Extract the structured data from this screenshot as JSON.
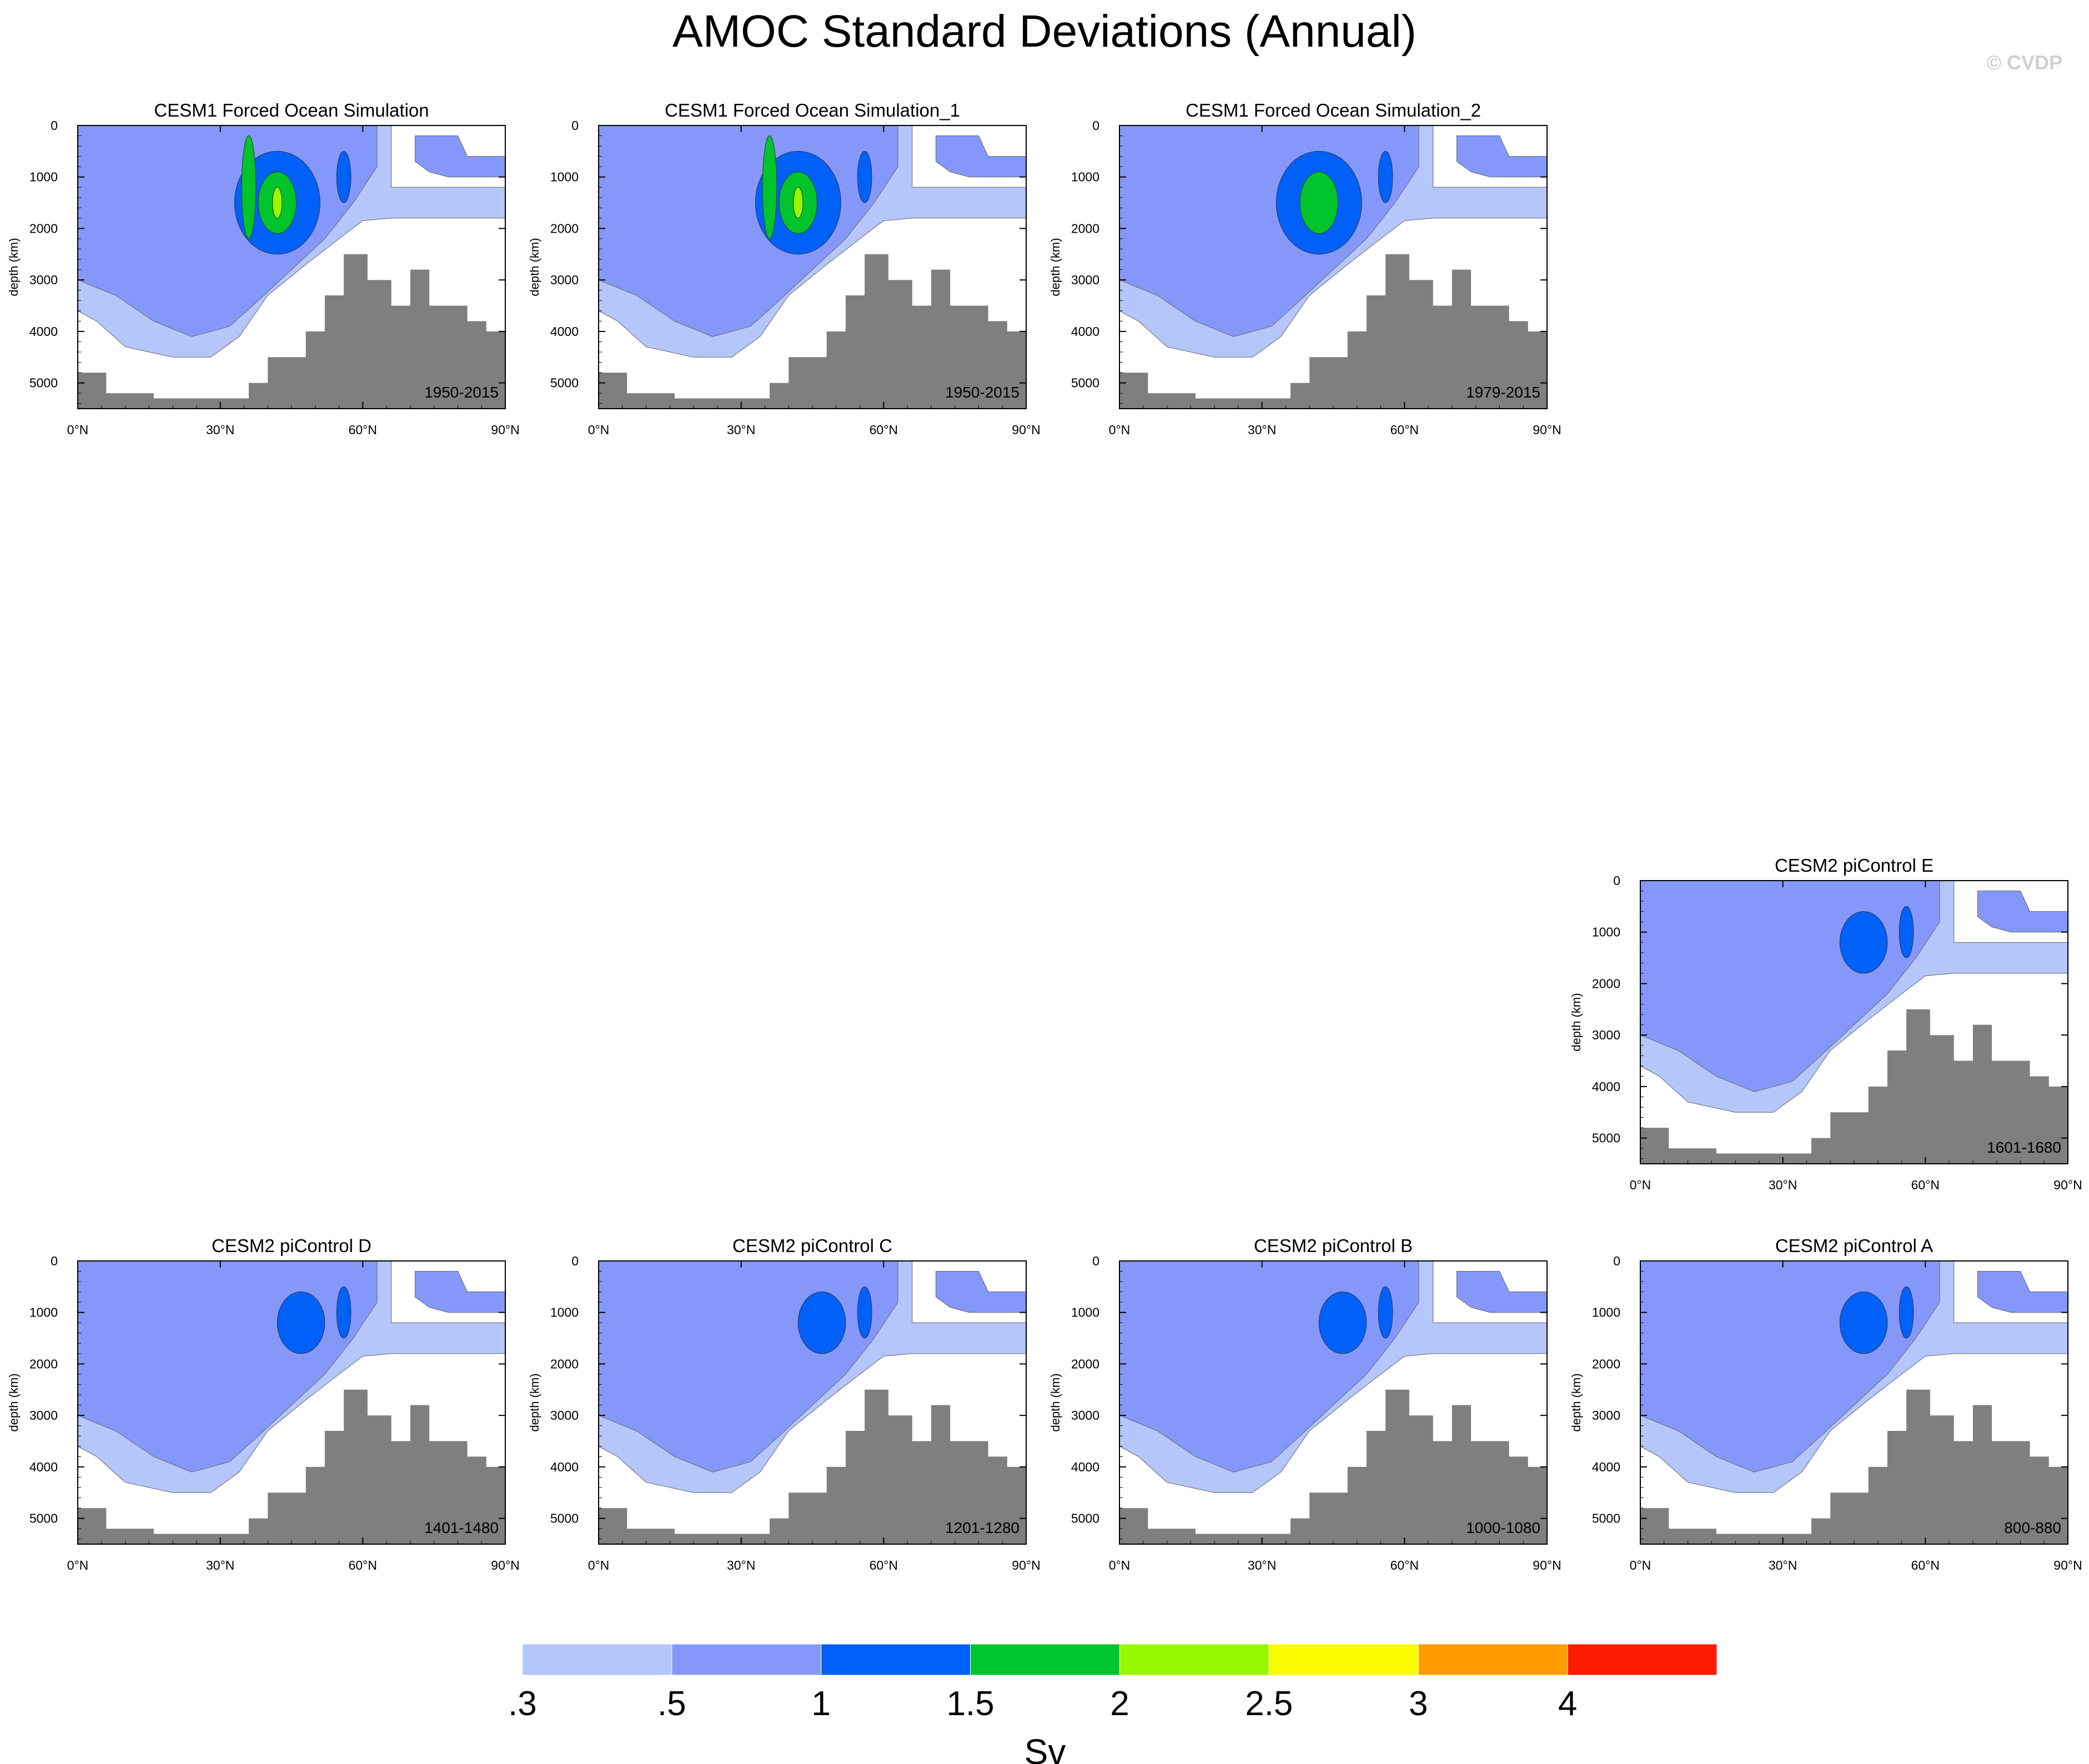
{
  "title": "AMOC Standard Deviations (Annual)",
  "copyright": "© CVDP",
  "chart_data": {
    "type": "contour",
    "units": "Sv",
    "x_ticks": [
      "0°N",
      "30°N",
      "60°N",
      "90°N"
    ],
    "xlim": [
      0,
      90
    ],
    "y_ticks": [
      "0",
      "1000",
      "2000",
      "3000",
      "4000",
      "5000"
    ],
    "ylim": [
      0,
      5500
    ],
    "ylabel": "depth (km)",
    "levels": [
      ".3",
      ".5",
      "1",
      "1.5",
      "2",
      "2.5",
      "3",
      "4"
    ],
    "level_colors": [
      "#ffffff",
      "#b4c6fa",
      "#8598fa",
      "#0060fa",
      "#00c42c",
      "#98f800",
      "#fcfc00",
      "#ff9b00",
      "#ff1a00"
    ],
    "land_color": "#7f7f7f",
    "panels": [
      {
        "title": "CESM1 Forced Ocean Simulation",
        "period": "1950-2015",
        "peak_level": 5
      },
      {
        "title": "CESM1 Forced Ocean Simulation_1",
        "period": "1950-2015",
        "peak_level": 5
      },
      {
        "title": "CESM1 Forced Ocean Simulation_2",
        "period": "1979-2015",
        "peak_level": 4
      },
      {
        "title": "CESM2 piControl E",
        "period": "1601-1680",
        "peak_level": 3
      },
      {
        "title": "CESM2 piControl D",
        "period": "1401-1480",
        "peak_level": 3
      },
      {
        "title": "CESM2 piControl C",
        "period": "1201-1280",
        "peak_level": 3
      },
      {
        "title": "CESM2 piControl B",
        "period": "1000-1080",
        "peak_level": 3
      },
      {
        "title": "CESM2 piControl A",
        "period": "800-880",
        "peak_level": 3
      }
    ]
  }
}
